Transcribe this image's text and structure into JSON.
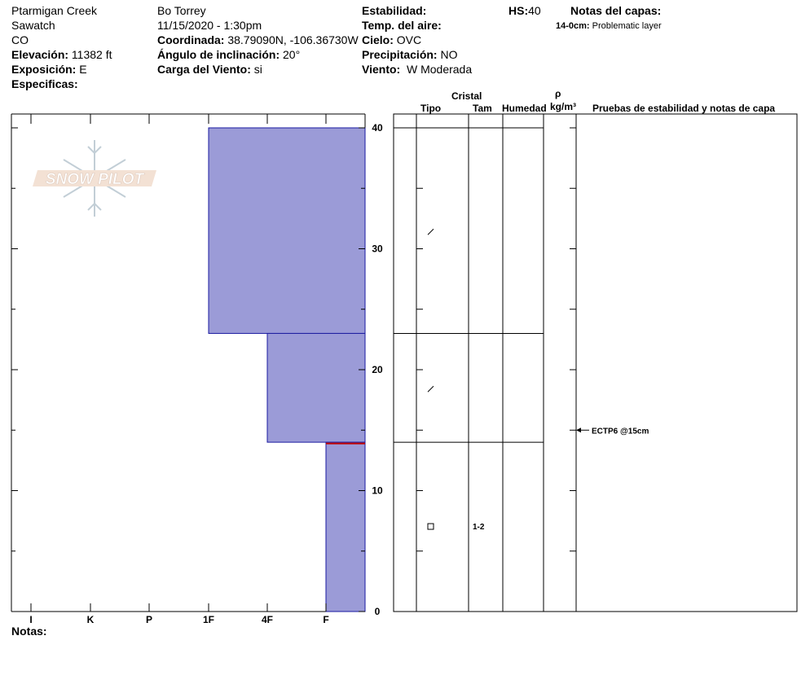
{
  "header": {
    "location": "Ptarmigan Creek",
    "range": "Sawatch",
    "state": "CO",
    "elevation_label": "Elevación:",
    "elevation_value": "11382 ft",
    "aspect_label": "Exposición:",
    "aspect_value": "E",
    "specifics_label": "Especificas:",
    "observer": "Bo Torrey",
    "datetime": "11/15/2020 - 1:30pm",
    "coord_label": "Coordinada:",
    "coord_value": "38.79090N, -106.36730W",
    "slope_label": "Ángulo de inclinación:",
    "slope_value": "20°",
    "wind_load_label": "Carga del Viento:",
    "wind_load_value": "si",
    "stability_label": "Estabilidad:",
    "air_temp_label": "Temp. del aire:",
    "sky_label": "Cielo:",
    "sky_value": "OVC",
    "precip_label": "Precipitación:",
    "precip_value": "NO",
    "wind_label": "Viento:",
    "wind_value": "W Moderada",
    "hs_label": "HS:",
    "hs_value": "40",
    "layer_notes_title": "Notas del capas:",
    "layer_note_depth": "14-0cm:",
    "layer_note_text": "Problematic layer"
  },
  "logo_text": "SNOW PILOT",
  "table_headers": {
    "crystal": "Cristal",
    "type": "Tipo",
    "size": "Tam",
    "moisture": "Humedad",
    "rho": "ρ",
    "density_unit": "kg/m³",
    "tests": "Pruebas de estabilidad y notas de capa"
  },
  "footer": {
    "notes_label": "Notas:"
  },
  "colors": {
    "layer_fill": "#9b9bd7",
    "layer_edge": "#1a1aa0",
    "weak_layer": "#c00000"
  },
  "chart_data": {
    "type": "snow_profile",
    "hardness_scale": [
      "I",
      "K",
      "P",
      "1F",
      "4F",
      "F"
    ],
    "depth_range_cm": [
      0,
      40
    ],
    "depth_ticks": [
      "0",
      "10",
      "20",
      "30",
      "40"
    ],
    "layers": [
      {
        "top": 40,
        "bottom": 23,
        "hardness": "1F",
        "crystal": "faceted",
        "size": ""
      },
      {
        "top": 23,
        "bottom": 14,
        "hardness": "4F",
        "crystal": "faceted",
        "size": ""
      },
      {
        "top": 14,
        "bottom": 0,
        "hardness": "F",
        "crystal": "depth_hoar",
        "size": "1-2"
      }
    ],
    "weak_layer_cm": 14,
    "tests": [
      {
        "depth": 15,
        "label": "ECTP6 @15cm"
      }
    ]
  }
}
